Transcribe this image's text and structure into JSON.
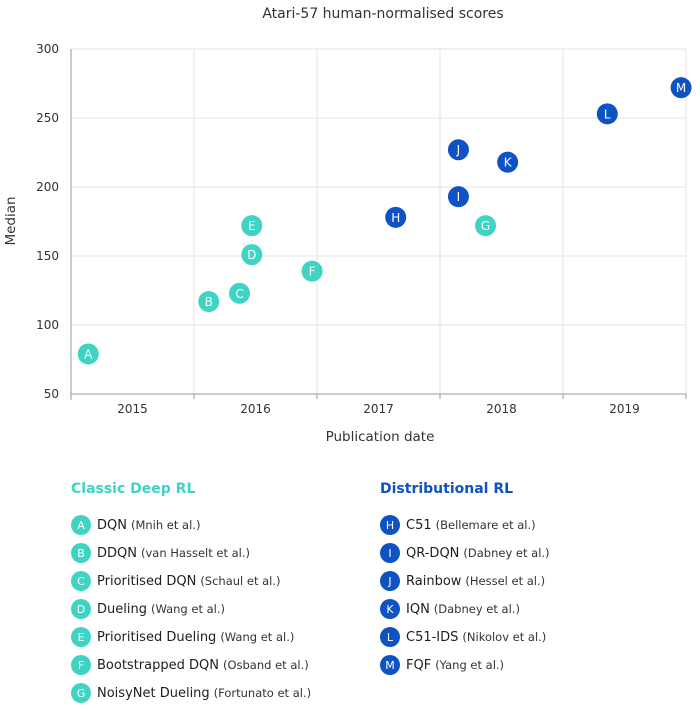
{
  "chart_data": {
    "type": "scatter",
    "title": "Atari-57 human-normalised scores",
    "xlabel": "Publication date",
    "ylabel": "Median",
    "xlim": [
      2014.5,
      2019.5
    ],
    "ylim": [
      50,
      300
    ],
    "xticks": [
      2015,
      2016,
      2017,
      2018,
      2019
    ],
    "xtick_labels": [
      "2015",
      "2016",
      "2017",
      "2018",
      "2019"
    ],
    "yticks": [
      50,
      100,
      150,
      200,
      250,
      300
    ],
    "ytick_labels": [
      "50",
      "100",
      "150",
      "200",
      "250",
      "300"
    ],
    "grid": "vertical and horizontal at ticks",
    "series": [
      {
        "name": "Classic Deep RL",
        "color": "#3ed3c3",
        "points": [
          {
            "label": "A",
            "x": 2014.64,
            "y": 79
          },
          {
            "label": "B",
            "x": 2015.62,
            "y": 117
          },
          {
            "label": "C",
            "x": 2015.87,
            "y": 123
          },
          {
            "label": "D",
            "x": 2015.97,
            "y": 151
          },
          {
            "label": "E",
            "x": 2015.97,
            "y": 172
          },
          {
            "label": "F",
            "x": 2016.46,
            "y": 139
          },
          {
            "label": "G",
            "x": 2017.87,
            "y": 172
          }
        ]
      },
      {
        "name": "Distributional RL",
        "color": "#0f52c4",
        "points": [
          {
            "label": "H",
            "x": 2017.14,
            "y": 178
          },
          {
            "label": "I",
            "x": 2017.65,
            "y": 193
          },
          {
            "label": "J",
            "x": 2017.65,
            "y": 227
          },
          {
            "label": "K",
            "x": 2018.05,
            "y": 218
          },
          {
            "label": "L",
            "x": 2018.86,
            "y": 253
          },
          {
            "label": "M",
            "x": 2019.46,
            "y": 272
          }
        ]
      }
    ]
  },
  "legend": {
    "classic": {
      "title": "Classic Deep RL",
      "items": [
        {
          "badge": "A",
          "name": "DQN",
          "authors": "(Mnih et al.)"
        },
        {
          "badge": "B",
          "name": "DDQN",
          "authors": "(van Hasselt et al.)"
        },
        {
          "badge": "C",
          "name": "Prioritised DQN",
          "authors": "(Schaul et al.)"
        },
        {
          "badge": "D",
          "name": "Dueling",
          "authors": "(Wang et al.)"
        },
        {
          "badge": "E",
          "name": "Prioritised Dueling",
          "authors": "(Wang et al.)"
        },
        {
          "badge": "F",
          "name": "Bootstrapped DQN",
          "authors": "(Osband et al.)"
        },
        {
          "badge": "G",
          "name": "NoisyNet Dueling",
          "authors": "(Fortunato et al.)"
        }
      ]
    },
    "distributional": {
      "title": "Distributional RL",
      "items": [
        {
          "badge": "H",
          "name": "C51",
          "authors": "(Bellemare et al.)"
        },
        {
          "badge": "I",
          "name": "QR-DQN",
          "authors": "(Dabney et al.)"
        },
        {
          "badge": "J",
          "name": "Rainbow",
          "authors": "(Hessel et al.)"
        },
        {
          "badge": "K",
          "name": "IQN",
          "authors": "(Dabney et al.)"
        },
        {
          "badge": "L",
          "name": "C51-IDS",
          "authors": "(Nikolov et al.)"
        },
        {
          "badge": "M",
          "name": "FQF",
          "authors": "(Yang et al.)"
        }
      ]
    }
  }
}
